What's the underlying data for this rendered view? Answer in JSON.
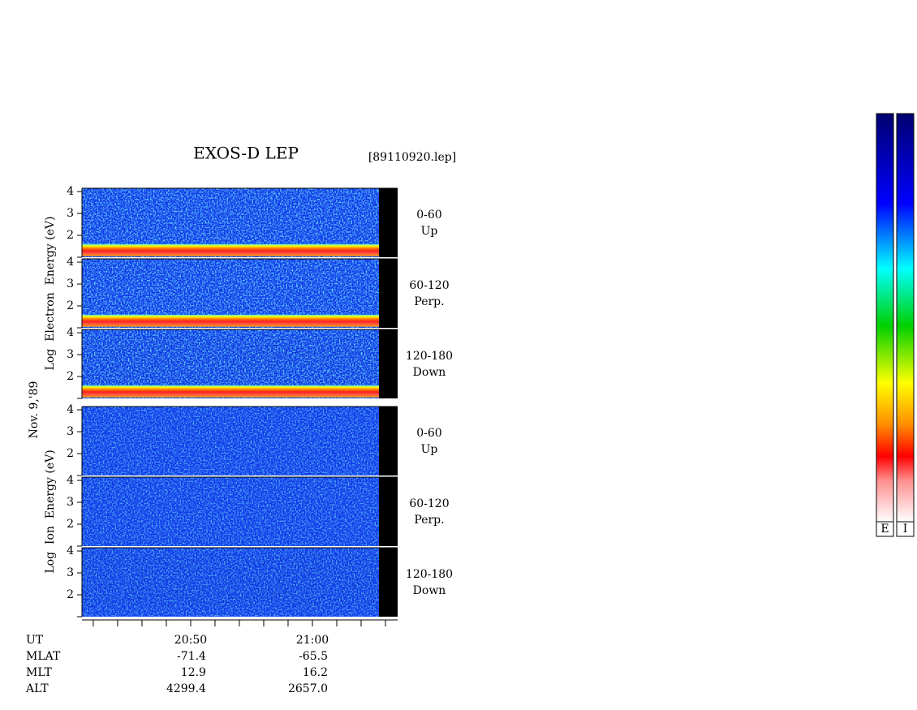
{
  "chart_data": {
    "type": "spectrogram",
    "title": "EXOS-D LEP",
    "file_label": "[89110920.lep]",
    "date_label": "Nov. 9,'89",
    "xlim": [
      41.07,
      67
    ],
    "xticks": [
      {
        "value": 50,
        "label": "20:50"
      },
      {
        "value": 60,
        "label": "21:00"
      }
    ],
    "xminor_ticks": [
      42,
      44,
      46,
      48,
      52,
      54,
      56,
      58,
      62,
      64,
      66
    ],
    "ylim": [
      1,
      4.15
    ],
    "yticks": [
      2,
      3,
      4
    ],
    "groups": [
      {
        "name": "Electron",
        "axis_label": "Log  Electron  Energy (eV)",
        "panels": [
          [
            "0-60",
            "Up"
          ],
          [
            "60-120",
            "Perp."
          ],
          [
            "120-180",
            "Down"
          ]
        ]
      },
      {
        "name": "Ion",
        "axis_label": "Log  Ion  Energy (eV)",
        "panels": [
          [
            "0-60",
            "Up"
          ],
          [
            "60-120",
            "Perp."
          ],
          [
            "120-180",
            "Down"
          ]
        ]
      }
    ],
    "ephemeris": {
      "rows": [
        {
          "label": "UT",
          "values": [
            "20:50",
            "21:00"
          ]
        },
        {
          "label": "MLAT",
          "values": [
            "-71.4",
            "-65.5"
          ]
        },
        {
          "label": "MLT",
          "values": [
            "12.9",
            "16.2"
          ]
        },
        {
          "label": "ALT",
          "values": [
            "4299.4",
            "2657.0"
          ]
        }
      ]
    },
    "colorbars": [
      "E",
      "I"
    ]
  }
}
